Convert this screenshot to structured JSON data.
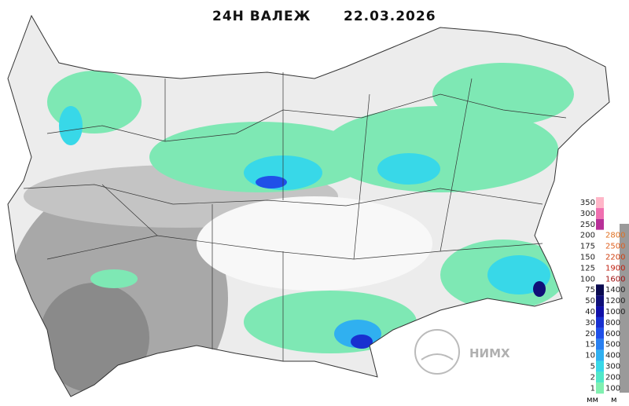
{
  "header": {
    "title": "24Н ВАЛЕЖ",
    "date": "22.03.2026"
  },
  "legend": {
    "precip": [
      {
        "label": "350",
        "color": "#ffb6c8"
      },
      {
        "label": "300",
        "color": "#f070b0"
      },
      {
        "label": "250",
        "color": "#b83098"
      },
      {
        "label": "200",
        "color": "#ffffff"
      },
      {
        "label": "175",
        "color": "#ffffff"
      },
      {
        "label": "150",
        "color": "#ffffff"
      },
      {
        "label": "125",
        "color": "#ffffff"
      },
      {
        "label": "100",
        "color": "#ffffff"
      },
      {
        "label": "75",
        "color": "#0a0a50"
      },
      {
        "label": "50",
        "color": "#101078"
      },
      {
        "label": "40",
        "color": "#1010a8"
      },
      {
        "label": "30",
        "color": "#1830d0"
      },
      {
        "label": "20",
        "color": "#2050e8"
      },
      {
        "label": "15",
        "color": "#2a80f0"
      },
      {
        "label": "10",
        "color": "#30b0f0"
      },
      {
        "label": "5",
        "color": "#38d8e8"
      },
      {
        "label": "2",
        "color": "#50e8c8"
      },
      {
        "label": "1",
        "color": "#80f0b0"
      }
    ],
    "precip_unit": "мм",
    "altitude": [
      {
        "label": "2800",
        "color": "#e07020"
      },
      {
        "label": "2500",
        "color": "#e06020"
      },
      {
        "label": "2200",
        "color": "#d04010"
      },
      {
        "label": "1900",
        "color": "#c02010"
      },
      {
        "label": "1600",
        "color": "#a01010"
      },
      {
        "label": "1400",
        "color": "#202020"
      },
      {
        "label": "1200",
        "color": "#202020"
      },
      {
        "label": "1000",
        "color": "#202020"
      },
      {
        "label": "800",
        "color": "#202020"
      },
      {
        "label": "600",
        "color": "#202020"
      },
      {
        "label": "500",
        "color": "#202020"
      },
      {
        "label": "400",
        "color": "#202020"
      },
      {
        "label": "300",
        "color": "#202020"
      },
      {
        "label": "200",
        "color": "#202020"
      },
      {
        "label": "100",
        "color": "#202020"
      }
    ],
    "altitude_unit": "м"
  },
  "logo": {
    "text": "НИМХ"
  }
}
